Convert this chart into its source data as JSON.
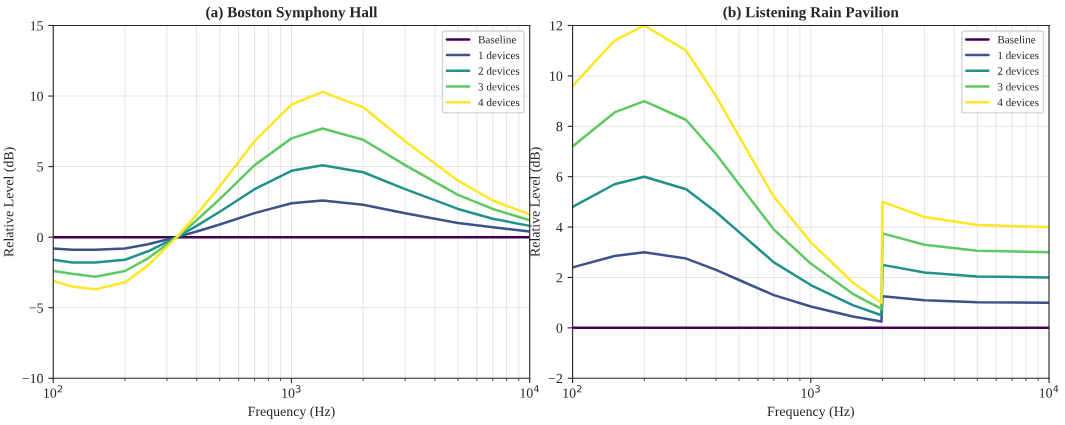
{
  "chart_data": [
    {
      "type": "line",
      "title": "(a) Boston Symphony Hall",
      "xlabel": "Frequency (Hz)",
      "ylabel": "Relative Level (dB)",
      "log": "x",
      "grid": true,
      "legend": "top right",
      "xlim": [
        100,
        10000
      ],
      "xticks": [
        {
          "value": 100,
          "label": "10$^{2}$"
        },
        {
          "value": 1000,
          "label": "10$^{3}$"
        },
        {
          "value": 10000,
          "label": "10$^{4}$"
        }
      ],
      "ylim": [
        -10,
        15
      ],
      "yticks": [
        -10,
        -5,
        0,
        5,
        10,
        15
      ],
      "x": [
        100,
        120,
        150,
        200,
        250,
        330,
        400,
        500,
        700,
        1000,
        1350,
        2000,
        3000,
        5000,
        7000,
        10000
      ],
      "series": [
        {
          "name": "Baseline",
          "color": "#440154",
          "values": [
            0,
            0,
            0,
            0,
            0,
            0,
            0,
            0,
            0,
            0,
            0,
            0,
            0,
            0,
            0,
            0
          ]
        },
        {
          "name": "1 devices",
          "color": "#3b528b",
          "values": [
            -0.8,
            -0.9,
            -0.9,
            -0.8,
            -0.5,
            0,
            0.4,
            0.9,
            1.7,
            2.4,
            2.6,
            2.3,
            1.7,
            1.0,
            0.7,
            0.4
          ]
        },
        {
          "name": "2 devices",
          "color": "#21918c",
          "values": [
            -1.6,
            -1.8,
            -1.8,
            -1.6,
            -1.0,
            0,
            0.8,
            1.8,
            3.4,
            4.7,
            5.1,
            4.6,
            3.4,
            2.0,
            1.3,
            0.8
          ]
        },
        {
          "name": "3 devices",
          "color": "#5ec962",
          "values": [
            -2.4,
            -2.6,
            -2.8,
            -2.4,
            -1.5,
            0,
            1.2,
            2.7,
            5.1,
            7.0,
            7.7,
            6.9,
            5.1,
            3.0,
            2.0,
            1.2
          ]
        },
        {
          "name": "4 devices",
          "color": "#fde725",
          "values": [
            -3.1,
            -3.5,
            -3.7,
            -3.2,
            -2.0,
            0,
            1.6,
            3.6,
            6.8,
            9.4,
            10.3,
            9.2,
            6.8,
            4.0,
            2.6,
            1.6
          ]
        }
      ]
    },
    {
      "type": "line",
      "title": "(b) Listening Rain Pavilion",
      "xlabel": "Frequency (Hz)",
      "ylabel": "Relative Level (dB)",
      "log": "x",
      "grid": true,
      "legend": "top right",
      "xlim": [
        100,
        10000
      ],
      "xticks": [
        {
          "value": 100,
          "label": "10$^{2}$"
        },
        {
          "value": 1000,
          "label": "10$^{3}$"
        },
        {
          "value": 10000,
          "label": "10$^{4}$"
        }
      ],
      "ylim": [
        -2,
        12
      ],
      "yticks": [
        -2,
        0,
        2,
        4,
        6,
        8,
        10,
        12
      ],
      "x": [
        100,
        150,
        200,
        300,
        400,
        500,
        700,
        1000,
        1500,
        1980,
        2000,
        3000,
        5000,
        10000
      ],
      "series": [
        {
          "name": "Baseline",
          "color": "#440154",
          "values": [
            0,
            0,
            0,
            0,
            0,
            0,
            0,
            0,
            0,
            0,
            0,
            0,
            0,
            0
          ]
        },
        {
          "name": "1 devices",
          "color": "#3b528b",
          "values": [
            2.4,
            2.85,
            3.0,
            2.75,
            2.3,
            1.9,
            1.3,
            0.85,
            0.45,
            0.25,
            1.25,
            1.1,
            1.02,
            1.0
          ]
        },
        {
          "name": "2 devices",
          "color": "#21918c",
          "values": [
            4.8,
            5.7,
            6.0,
            5.5,
            4.6,
            3.8,
            2.6,
            1.7,
            0.9,
            0.5,
            2.5,
            2.2,
            2.04,
            2.0
          ]
        },
        {
          "name": "3 devices",
          "color": "#5ec962",
          "values": [
            7.2,
            8.55,
            9.0,
            8.25,
            6.9,
            5.7,
            3.9,
            2.55,
            1.35,
            0.75,
            3.75,
            3.3,
            3.06,
            3.0
          ]
        },
        {
          "name": "4 devices",
          "color": "#fde725",
          "values": [
            9.6,
            11.4,
            12.0,
            11.0,
            9.2,
            7.6,
            5.2,
            3.4,
            1.8,
            1.0,
            5.0,
            4.4,
            4.08,
            4.0
          ]
        }
      ]
    }
  ]
}
